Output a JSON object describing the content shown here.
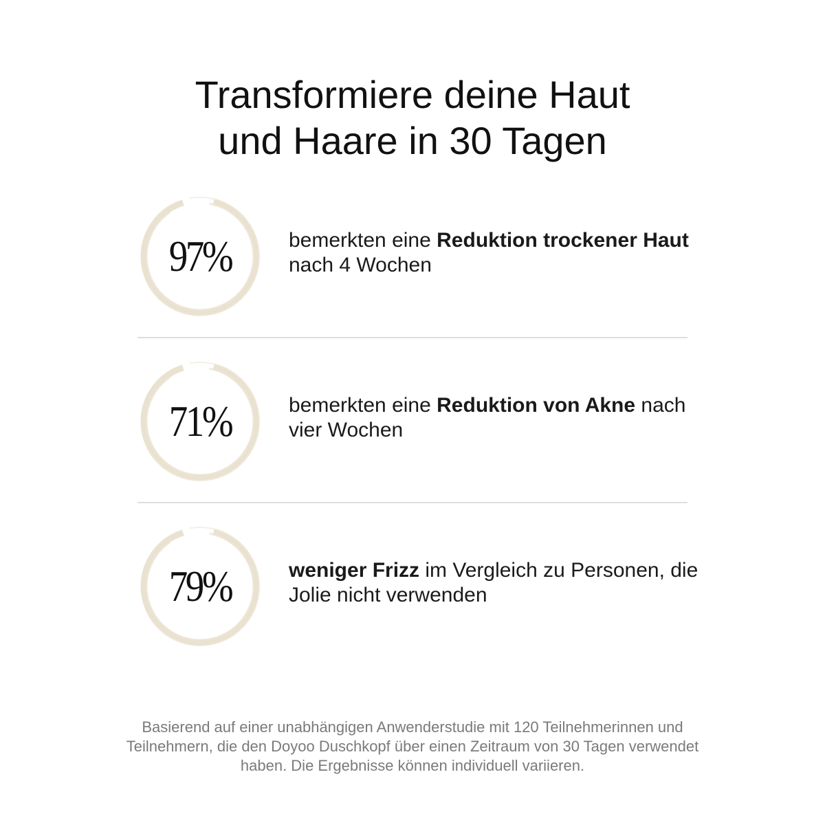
{
  "title": {
    "line1": "Transformiere deine Haut",
    "line2": "und Haare in 30 Tagen"
  },
  "stats": [
    {
      "percent": "97%",
      "value": 0.97,
      "text_pre": "bemerkten eine ",
      "text_bold": "Reduktion trockener Haut",
      "text_post": " nach 4 Wochen"
    },
    {
      "percent": "71%",
      "value": 0.71,
      "text_pre": "bemerkten eine ",
      "text_bold": "Reduktion von Akne",
      "text_post": " nach vier Wochen"
    },
    {
      "percent": "79%",
      "value": 0.79,
      "text_pre": "",
      "text_bold": "weniger Frizz",
      "text_post": " im Vergleich zu Personen, die Jolie nicht verwenden"
    }
  ],
  "footnote": "Basierend auf einer unabhängigen Anwenderstudie mit 120 Teilnehmerinnen und Teilnehmern, die den Doyoo Duschkopf über einen Zeitraum von 30 Tagen verwendet haben. Die Ergebnisse können individuell variieren.",
  "colors": {
    "ring": "#e6ddc8",
    "ring_dark": "#d8ccb0",
    "divider": "#dedede",
    "text": "#111111",
    "muted": "#7a7a7a"
  }
}
